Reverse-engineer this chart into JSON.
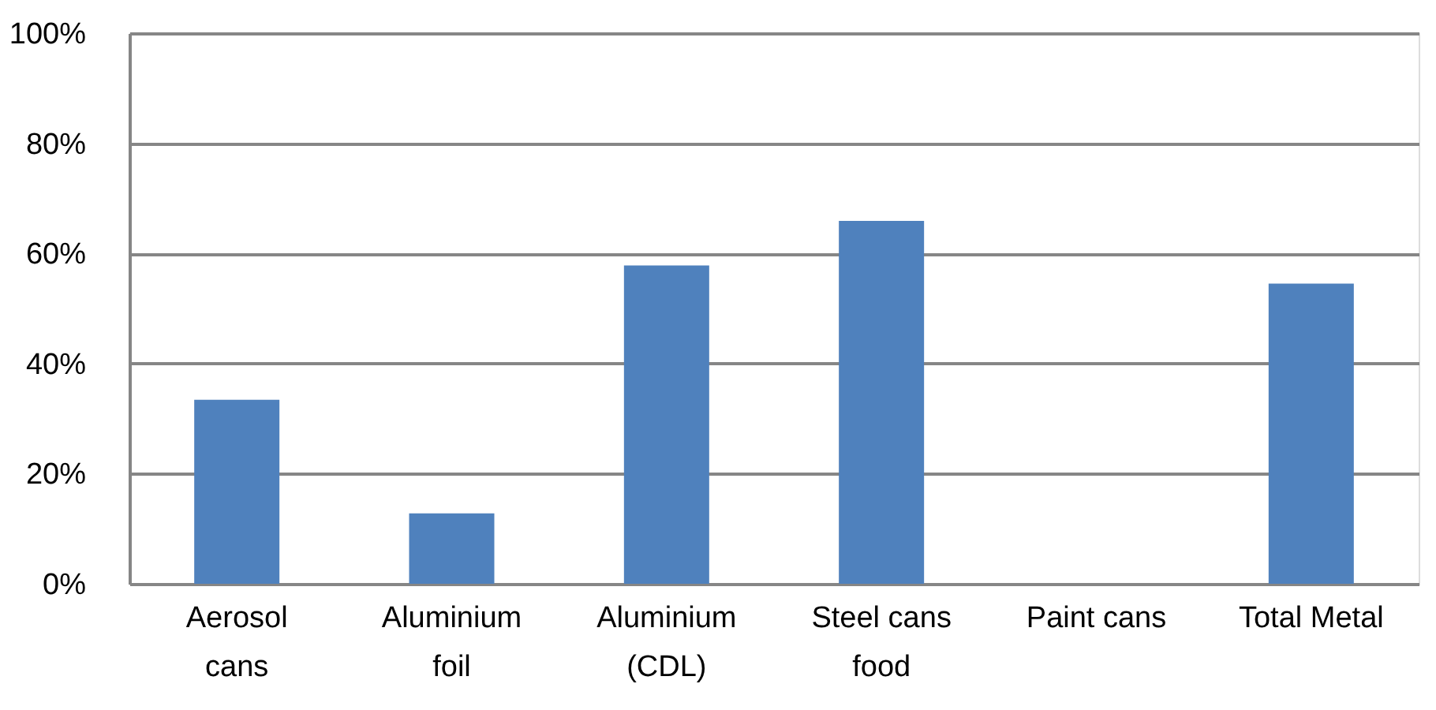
{
  "chart_data": {
    "type": "bar",
    "categories": [
      "Aerosol cans",
      "Aluminium foil",
      "Aluminium (CDL)",
      "Steel cans food",
      "Paint cans",
      "Total Metal"
    ],
    "values": [
      33.4,
      12.8,
      57.8,
      65.9,
      0,
      54.5
    ],
    "color": "#4f81bd",
    "ylim": [
      0,
      100
    ],
    "yticks": [
      {
        "value": 0,
        "label": "0%"
      },
      {
        "value": 20,
        "label": "20%"
      },
      {
        "value": 40,
        "label": "40%"
      },
      {
        "value": 60,
        "label": "60%"
      },
      {
        "value": 80,
        "label": "80%"
      },
      {
        "value": 100,
        "label": "100%"
      }
    ],
    "grid": "y"
  }
}
